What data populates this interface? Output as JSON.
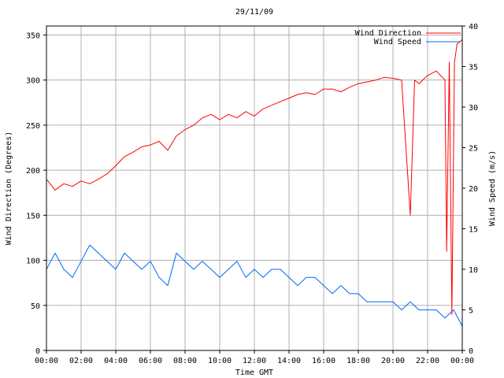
{
  "chart_data": {
    "type": "line",
    "title": "29/11/09",
    "xlabel": "Time GMT",
    "ylabel_left": "Wind Direction (Degrees)",
    "ylabel_right": "Wind Speed (m/s)",
    "x_tick_labels": [
      "00:00",
      "02:00",
      "04:00",
      "06:00",
      "08:00",
      "10:00",
      "12:00",
      "14:00",
      "16:00",
      "18:00",
      "20:00",
      "22:00",
      "00:00"
    ],
    "xlim_hours": [
      0,
      24
    ],
    "ylim_left": [
      0,
      360
    ],
    "ylim_right": [
      0,
      40
    ],
    "left_ticks": [
      0,
      50,
      100,
      150,
      200,
      250,
      300,
      350
    ],
    "right_ticks": [
      0,
      5,
      10,
      15,
      20,
      25,
      30,
      35,
      40
    ],
    "grid": true,
    "legend_position": "top-right",
    "series": [
      {
        "name": "Wind Direction",
        "axis": "left",
        "color": "#ff0000",
        "x_hours": [
          0,
          0.5,
          1,
          1.5,
          2,
          2.5,
          3,
          3.5,
          4,
          4.5,
          5,
          5.5,
          6,
          6.5,
          7,
          7.5,
          8,
          8.5,
          9,
          9.5,
          10,
          10.5,
          11,
          11.5,
          12,
          12.5,
          13,
          13.5,
          14,
          14.5,
          15,
          15.5,
          16,
          16.5,
          17,
          17.5,
          18,
          18.5,
          19,
          19.5,
          20,
          20.5,
          21,
          21.25,
          21.5,
          22,
          22.5,
          23,
          23.1,
          23.25,
          23.4,
          23.55,
          23.7,
          24
        ],
        "values": [
          190,
          178,
          185,
          182,
          188,
          185,
          190,
          196,
          205,
          215,
          220,
          226,
          228,
          232,
          222,
          238,
          245,
          250,
          258,
          262,
          256,
          262,
          258,
          265,
          260,
          268,
          272,
          276,
          280,
          284,
          286,
          284,
          290,
          290,
          287,
          292,
          296,
          298,
          300,
          303,
          302,
          300,
          150,
          300,
          296,
          305,
          310,
          300,
          110,
          320,
          40,
          320,
          340,
          345
        ]
      },
      {
        "name": "Wind Speed",
        "axis": "right",
        "color": "#0066ff",
        "x_hours": [
          0,
          0.5,
          1,
          1.5,
          2,
          2.5,
          3,
          3.5,
          4,
          4.5,
          5,
          5.5,
          6,
          6.5,
          7,
          7.5,
          8,
          8.5,
          9,
          9.5,
          10,
          10.5,
          11,
          11.5,
          12,
          12.5,
          13,
          13.5,
          14,
          14.5,
          15,
          15.5,
          16,
          16.5,
          17,
          17.5,
          18,
          18.5,
          19,
          19.5,
          20,
          20.5,
          21,
          21.5,
          22,
          22.5,
          23,
          23.5,
          24
        ],
        "values": [
          10,
          12,
          10,
          9,
          11,
          13,
          12,
          11,
          10,
          12,
          11,
          10,
          11,
          9,
          8,
          12,
          11,
          10,
          11,
          10,
          9,
          10,
          11,
          9,
          10,
          9,
          10,
          10,
          9,
          8,
          9,
          9,
          8,
          7,
          8,
          7,
          7,
          6,
          6,
          6,
          6,
          5,
          6,
          5,
          5,
          5,
          4,
          5,
          3
        ]
      }
    ]
  }
}
